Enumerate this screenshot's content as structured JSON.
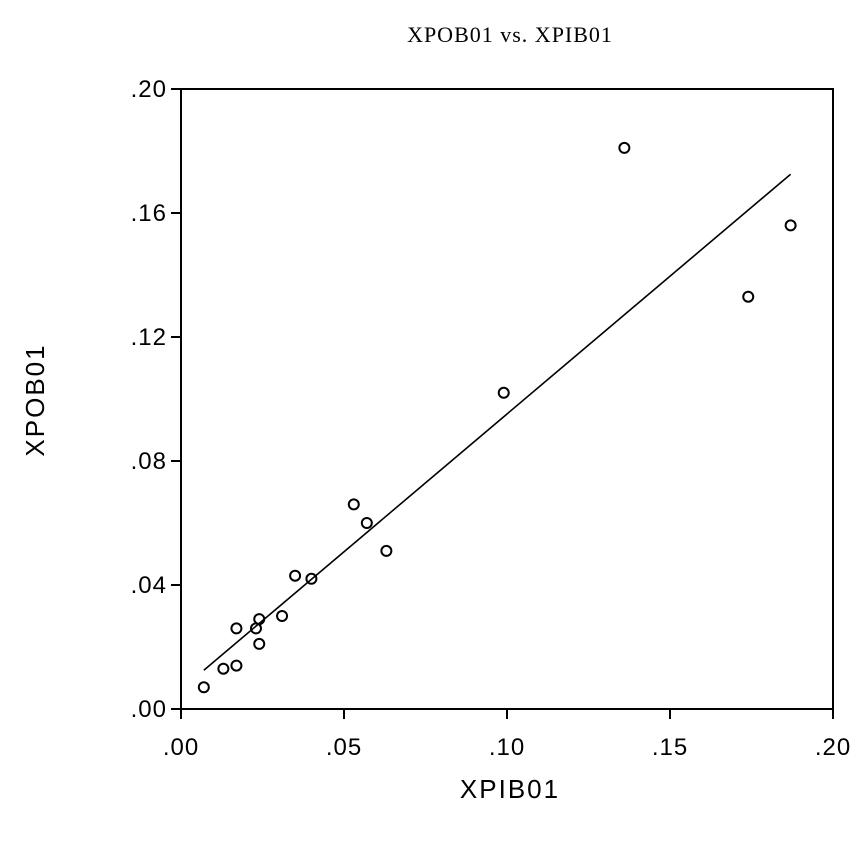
{
  "chart_data": {
    "type": "scatter",
    "title": "XPOB01 vs. XPIB01",
    "xlabel": "XPIB01",
    "ylabel": "XPOB01",
    "xlim": [
      0.0,
      0.2
    ],
    "ylim": [
      0.0,
      0.2
    ],
    "x_ticks": [
      {
        "value": 0.0,
        "label": ".00"
      },
      {
        "value": 0.05,
        "label": ".05"
      },
      {
        "value": 0.1,
        "label": ".10"
      },
      {
        "value": 0.15,
        "label": ".15"
      },
      {
        "value": 0.2,
        "label": ".20"
      }
    ],
    "y_ticks": [
      {
        "value": 0.0,
        "label": ".00"
      },
      {
        "value": 0.04,
        "label": ".04"
      },
      {
        "value": 0.08,
        "label": ".08"
      },
      {
        "value": 0.12,
        "label": ".12"
      },
      {
        "value": 0.16,
        "label": ".16"
      },
      {
        "value": 0.2,
        "label": ".20"
      }
    ],
    "points": [
      {
        "x": 0.007,
        "y": 0.007
      },
      {
        "x": 0.013,
        "y": 0.013
      },
      {
        "x": 0.017,
        "y": 0.014
      },
      {
        "x": 0.017,
        "y": 0.026
      },
      {
        "x": 0.023,
        "y": 0.026
      },
      {
        "x": 0.024,
        "y": 0.029
      },
      {
        "x": 0.024,
        "y": 0.021
      },
      {
        "x": 0.031,
        "y": 0.03
      },
      {
        "x": 0.035,
        "y": 0.043
      },
      {
        "x": 0.04,
        "y": 0.042
      },
      {
        "x": 0.053,
        "y": 0.066
      },
      {
        "x": 0.057,
        "y": 0.06
      },
      {
        "x": 0.063,
        "y": 0.051
      },
      {
        "x": 0.099,
        "y": 0.102
      },
      {
        "x": 0.136,
        "y": 0.181
      },
      {
        "x": 0.174,
        "y": 0.133
      },
      {
        "x": 0.187,
        "y": 0.156
      }
    ],
    "fit_line": {
      "x": [
        0.007,
        0.187
      ],
      "y": [
        0.0125,
        0.1725
      ]
    },
    "grid": false,
    "legend": "none",
    "colors": {
      "marker": "#000000",
      "line": "#000000",
      "frame": "#000000",
      "background": "#ffffff"
    }
  }
}
